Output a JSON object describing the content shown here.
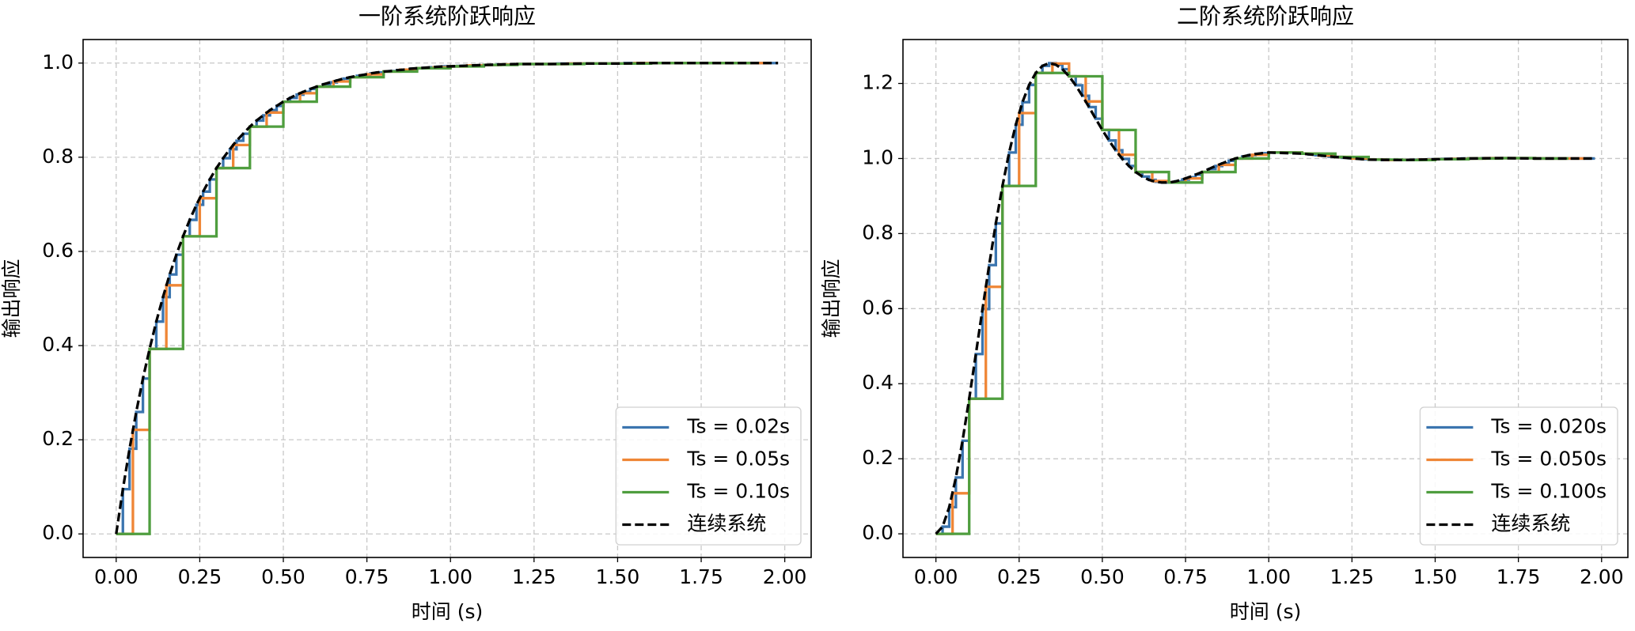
{
  "chart_data": [
    {
      "type": "line",
      "title": "一阶系统阶跃响应",
      "xlabel": "时间 (s)",
      "ylabel": "输出响应",
      "xlim": [
        -0.099,
        2.079
      ],
      "ylim": [
        -0.05,
        1.05
      ],
      "grid": true,
      "legend": "lower right",
      "xticks": [
        {
          "value": 0,
          "label": "0.00"
        },
        0.25,
        {
          "value": 0.5,
          "label": "0.50"
        },
        0.75,
        {
          "value": 1,
          "label": "1.00"
        },
        1.25,
        {
          "value": 1.5,
          "label": "1.50"
        },
        1.75,
        {
          "value": 2,
          "label": "2.00"
        }
      ],
      "yticks": [
        {
          "value": 0,
          "label": "0.0"
        },
        0.2,
        0.4,
        0.6,
        0.8,
        {
          "value": 1,
          "label": "1.0"
        }
      ],
      "series": [
        {
          "name": "Ts = 0.02s",
          "color": "#3b75af",
          "drawstyle": "steps-post",
          "x": [
            0,
            0.02,
            0.04,
            0.06,
            0.08,
            0.1,
            0.12,
            0.14,
            0.16,
            0.18,
            0.2,
            0.22,
            0.24,
            0.26,
            0.28,
            0.3,
            0.32,
            0.34,
            0.36,
            0.38,
            0.4,
            0.42,
            0.44,
            0.46,
            0.48,
            0.5,
            0.52,
            0.54,
            0.56,
            0.58,
            0.6,
            0.62,
            0.64,
            0.66,
            0.68,
            0.7,
            0.72,
            0.74,
            0.76,
            0.78,
            0.8,
            0.82,
            0.84,
            0.86,
            0.88,
            0.9,
            0.92,
            0.94,
            0.96,
            0.98,
            1.0,
            1.02,
            1.04,
            1.06,
            1.08,
            1.1,
            1.12,
            1.14,
            1.16,
            1.18,
            1.2,
            1.22,
            1.24,
            1.26,
            1.28,
            1.3,
            1.32,
            1.34,
            1.36,
            1.38,
            1.4,
            1.42,
            1.44,
            1.46,
            1.48,
            1.5,
            1.52,
            1.54,
            1.56,
            1.58,
            1.6,
            1.62,
            1.64,
            1.66,
            1.68,
            1.7,
            1.72,
            1.74,
            1.76,
            1.78,
            1.8,
            1.82,
            1.84,
            1.86,
            1.88,
            1.9,
            1.92,
            1.94,
            1.96,
            1.98
          ],
          "values": [
            0,
            0.095,
            0.181,
            0.259,
            0.33,
            0.393,
            0.451,
            0.503,
            0.551,
            0.593,
            0.632,
            0.667,
            0.699,
            0.727,
            0.753,
            0.777,
            0.798,
            0.817,
            0.835,
            0.85,
            0.865,
            0.878,
            0.889,
            0.9,
            0.909,
            0.918,
            0.926,
            0.933,
            0.939,
            0.945,
            0.95,
            0.955,
            0.959,
            0.963,
            0.967,
            0.97,
            0.973,
            0.975,
            0.978,
            0.98,
            0.982,
            0.983,
            0.985,
            0.986,
            0.988,
            0.989,
            0.99,
            0.991,
            0.992,
            0.993,
            0.993,
            0.994,
            0.994,
            0.995,
            0.995,
            0.996,
            0.996,
            0.997,
            0.997,
            0.997,
            0.998,
            0.998,
            0.998,
            0.998,
            0.998,
            0.998,
            0.999,
            0.999,
            0.999,
            0.999,
            0.999,
            0.999,
            0.999,
            0.999,
            0.999,
            0.999,
            1.0,
            1.0,
            1.0,
            1.0,
            1.0,
            1.0,
            1.0,
            1.0,
            1.0,
            1.0,
            1.0,
            1.0,
            1.0,
            1.0,
            1.0,
            1.0,
            1.0,
            1.0,
            1.0,
            1.0,
            1.0,
            1.0,
            1.0,
            1.0
          ]
        },
        {
          "name": "Ts = 0.05s",
          "color": "#ef8636",
          "drawstyle": "steps-post",
          "x": [
            0,
            0.05,
            0.1,
            0.15,
            0.2,
            0.25,
            0.3,
            0.35,
            0.4,
            0.45,
            0.5,
            0.55,
            0.6,
            0.65,
            0.7,
            0.75,
            0.8,
            0.85,
            0.9,
            0.95,
            1.0,
            1.05,
            1.1,
            1.15,
            1.2,
            1.25,
            1.3,
            1.35,
            1.4,
            1.45,
            1.5,
            1.55,
            1.6,
            1.65,
            1.7,
            1.75,
            1.8,
            1.85,
            1.9,
            1.95
          ],
          "values": [
            0,
            0.221,
            0.393,
            0.528,
            0.632,
            0.713,
            0.777,
            0.826,
            0.865,
            0.895,
            0.918,
            0.936,
            0.95,
            0.961,
            0.97,
            0.976,
            0.982,
            0.986,
            0.989,
            0.991,
            0.993,
            0.995,
            0.996,
            0.997,
            0.998,
            0.998,
            0.998,
            0.999,
            0.999,
            0.999,
            0.999,
            1.0,
            1.0,
            1.0,
            1.0,
            1.0,
            1.0,
            1.0,
            1.0,
            1.0
          ]
        },
        {
          "name": "Ts = 0.10s",
          "color": "#4f9e3f",
          "drawstyle": "steps-post",
          "x": [
            0,
            0.1,
            0.2,
            0.3,
            0.4,
            0.5,
            0.6,
            0.7,
            0.8,
            0.9,
            1.0,
            1.1,
            1.2,
            1.3,
            1.4,
            1.5,
            1.6,
            1.7,
            1.8,
            1.9
          ],
          "values": [
            0,
            0.393,
            0.632,
            0.777,
            0.865,
            0.918,
            0.95,
            0.97,
            0.982,
            0.989,
            0.993,
            0.996,
            0.998,
            0.998,
            0.999,
            0.999,
            1.0,
            1.0,
            1.0,
            1.0
          ]
        },
        {
          "name": "连续系统",
          "color": "#000000",
          "linestyle": "dashed",
          "x": [
            0,
            0.02,
            0.04,
            0.06,
            0.08,
            0.1,
            0.12,
            0.14,
            0.16,
            0.18,
            0.2,
            0.22,
            0.24,
            0.26,
            0.28,
            0.3,
            0.32,
            0.34,
            0.36,
            0.38,
            0.4,
            0.42,
            0.44,
            0.46,
            0.48,
            0.5,
            0.52,
            0.54,
            0.56,
            0.58,
            0.6,
            0.62,
            0.64,
            0.66,
            0.68,
            0.7,
            0.72,
            0.74,
            0.76,
            0.78,
            0.8,
            0.82,
            0.84,
            0.86,
            0.88,
            0.9,
            0.92,
            0.94,
            0.96,
            0.98,
            1.0,
            1.1,
            1.2,
            1.3,
            1.4,
            1.5,
            1.6,
            1.7,
            1.8,
            1.9,
            1.98
          ],
          "values": [
            0,
            0.095,
            0.181,
            0.259,
            0.33,
            0.393,
            0.451,
            0.503,
            0.551,
            0.593,
            0.632,
            0.667,
            0.699,
            0.727,
            0.753,
            0.777,
            0.798,
            0.817,
            0.835,
            0.85,
            0.865,
            0.878,
            0.889,
            0.9,
            0.909,
            0.918,
            0.926,
            0.933,
            0.939,
            0.945,
            0.95,
            0.955,
            0.959,
            0.963,
            0.967,
            0.97,
            0.973,
            0.975,
            0.978,
            0.98,
            0.982,
            0.983,
            0.985,
            0.986,
            0.988,
            0.989,
            0.99,
            0.991,
            0.992,
            0.993,
            0.993,
            0.996,
            0.998,
            0.998,
            0.999,
            0.999,
            1.0,
            1.0,
            1.0,
            1.0,
            1.0
          ]
        }
      ]
    },
    {
      "type": "line",
      "title": "二阶系统阶跃响应",
      "xlabel": "时间 (s)",
      "ylabel": "输出响应",
      "xlim": [
        -0.099,
        2.079
      ],
      "ylim": [
        -0.063,
        1.317
      ],
      "grid": true,
      "legend": "lower right",
      "xticks": [
        {
          "value": 0,
          "label": "0.00"
        },
        0.25,
        {
          "value": 0.5,
          "label": "0.50"
        },
        0.75,
        {
          "value": 1,
          "label": "1.00"
        },
        1.25,
        {
          "value": 1.5,
          "label": "1.50"
        },
        1.75,
        {
          "value": 2,
          "label": "2.00"
        }
      ],
      "yticks": [
        {
          "value": 0,
          "label": "0.0"
        },
        0.2,
        0.4,
        0.6,
        0.8,
        {
          "value": 1,
          "label": "1.0"
        },
        1.2
      ],
      "series": [
        {
          "name": "Ts = 0.020s",
          "color": "#3b75af",
          "drawstyle": "steps-post",
          "x": [
            0,
            0.02,
            0.04,
            0.06,
            0.08,
            0.1,
            0.12,
            0.14,
            0.16,
            0.18,
            0.2,
            0.22,
            0.24,
            0.26,
            0.28,
            0.3,
            0.32,
            0.34,
            0.36,
            0.38,
            0.4,
            0.42,
            0.44,
            0.46,
            0.48,
            0.5,
            0.52,
            0.54,
            0.56,
            0.58,
            0.6,
            0.62,
            0.64,
            0.66,
            0.68,
            0.7,
            0.72,
            0.74,
            0.76,
            0.78,
            0.8,
            0.82,
            0.84,
            0.86,
            0.88,
            0.9,
            0.92,
            0.94,
            0.96,
            0.98,
            1.0,
            1.02,
            1.04,
            1.06,
            1.08,
            1.1,
            1.12,
            1.14,
            1.16,
            1.18,
            1.2,
            1.22,
            1.24,
            1.26,
            1.28,
            1.3,
            1.32,
            1.34,
            1.36,
            1.38,
            1.4,
            1.42,
            1.44,
            1.46,
            1.48,
            1.5,
            1.52,
            1.54,
            1.56,
            1.58,
            1.6,
            1.62,
            1.64,
            1.66,
            1.68,
            1.7,
            1.72,
            1.74,
            1.76,
            1.78,
            1.8,
            1.82,
            1.84,
            1.86,
            1.88,
            1.9,
            1.92,
            1.94,
            1.96,
            1.98
          ],
          "values": [
            0,
            0.019,
            0.071,
            0.15,
            0.248,
            0.36,
            0.479,
            0.599,
            0.716,
            0.827,
            0.927,
            1.016,
            1.09,
            1.15,
            1.196,
            1.228,
            1.247,
            1.254,
            1.25,
            1.238,
            1.219,
            1.195,
            1.167,
            1.137,
            1.106,
            1.076,
            1.048,
            1.022,
            0.999,
            0.98,
            0.964,
            0.952,
            0.943,
            0.938,
            0.936,
            0.936,
            0.939,
            0.944,
            0.95,
            0.957,
            0.964,
            0.972,
            0.98,
            0.987,
            0.994,
            1.0,
            1.005,
            1.009,
            1.012,
            1.014,
            1.016,
            1.016,
            1.016,
            1.016,
            1.014,
            1.013,
            1.011,
            1.009,
            1.007,
            1.005,
            1.004,
            1.002,
            1.001,
            1.0,
            0.998,
            0.997,
            0.997,
            0.996,
            0.996,
            0.996,
            0.996,
            0.996,
            0.997,
            0.997,
            0.998,
            0.998,
            0.999,
            0.999,
            0.999,
            1.0,
            1.0,
            1.0,
            1.001,
            1.001,
            1.001,
            1.001,
            1.001,
            1.001,
            1.001,
            1.001,
            1.0,
            1.0,
            1.0,
            1.0,
            1.0,
            1.0,
            1.0,
            1.0,
            1.0,
            1.0
          ]
        },
        {
          "name": "Ts = 0.050s",
          "color": "#ef8636",
          "drawstyle": "steps-post",
          "x": [
            0,
            0.05,
            0.1,
            0.15,
            0.2,
            0.25,
            0.3,
            0.35,
            0.4,
            0.45,
            0.5,
            0.55,
            0.6,
            0.65,
            0.7,
            0.75,
            0.8,
            0.85,
            0.9,
            0.95,
            1.0,
            1.05,
            1.1,
            1.15,
            1.2,
            1.25,
            1.3,
            1.35,
            1.4,
            1.45,
            1.5,
            1.55,
            1.6,
            1.65,
            1.7,
            1.75,
            1.8,
            1.85,
            1.9,
            1.95
          ],
          "values": [
            0,
            0.108,
            0.36,
            0.658,
            0.927,
            1.121,
            1.228,
            1.253,
            1.219,
            1.152,
            1.076,
            1.01,
            0.964,
            0.94,
            0.936,
            0.947,
            0.964,
            0.983,
            1.0,
            1.01,
            1.016,
            1.016,
            1.013,
            1.008,
            1.004,
            1.0,
            0.997,
            0.996,
            0.996,
            0.997,
            0.998,
            0.999,
            1.0,
            1.001,
            1.001,
            1.001,
            1.0,
            1.0,
            1.0,
            1.0
          ]
        },
        {
          "name": "Ts = 0.100s",
          "color": "#4f9e3f",
          "drawstyle": "steps-post",
          "x": [
            0,
            0.1,
            0.2,
            0.3,
            0.4,
            0.5,
            0.6,
            0.7,
            0.8,
            0.9,
            1.0,
            1.1,
            1.2,
            1.3,
            1.4,
            1.5,
            1.6,
            1.7,
            1.8,
            1.9
          ],
          "values": [
            0,
            0.36,
            0.927,
            1.228,
            1.219,
            1.076,
            0.964,
            0.936,
            0.964,
            1.0,
            1.016,
            1.013,
            1.004,
            0.997,
            0.996,
            0.998,
            1.0,
            1.001,
            1.0,
            1.0
          ]
        },
        {
          "name": "连续系统",
          "color": "#000000",
          "linestyle": "dashed",
          "x": [
            0,
            0.02,
            0.04,
            0.06,
            0.08,
            0.1,
            0.12,
            0.14,
            0.16,
            0.18,
            0.2,
            0.22,
            0.24,
            0.26,
            0.28,
            0.3,
            0.32,
            0.34,
            0.36,
            0.38,
            0.4,
            0.42,
            0.44,
            0.46,
            0.48,
            0.5,
            0.52,
            0.54,
            0.56,
            0.58,
            0.6,
            0.62,
            0.64,
            0.66,
            0.68,
            0.7,
            0.72,
            0.74,
            0.76,
            0.78,
            0.8,
            0.82,
            0.84,
            0.86,
            0.88,
            0.9,
            0.92,
            0.94,
            0.96,
            0.98,
            1.0,
            1.1,
            1.2,
            1.3,
            1.4,
            1.5,
            1.6,
            1.7,
            1.8,
            1.9,
            1.98
          ],
          "values": [
            0,
            0.019,
            0.071,
            0.15,
            0.248,
            0.36,
            0.479,
            0.599,
            0.716,
            0.827,
            0.927,
            1.016,
            1.09,
            1.15,
            1.196,
            1.228,
            1.247,
            1.254,
            1.25,
            1.238,
            1.219,
            1.195,
            1.167,
            1.137,
            1.106,
            1.076,
            1.048,
            1.022,
            0.999,
            0.98,
            0.964,
            0.952,
            0.943,
            0.938,
            0.936,
            0.936,
            0.939,
            0.944,
            0.95,
            0.957,
            0.964,
            0.972,
            0.98,
            0.987,
            0.994,
            1.0,
            1.005,
            1.009,
            1.012,
            1.014,
            1.016,
            1.013,
            1.004,
            0.997,
            0.996,
            0.998,
            1.0,
            1.001,
            1.0,
            1.0,
            1.0
          ]
        }
      ]
    }
  ]
}
